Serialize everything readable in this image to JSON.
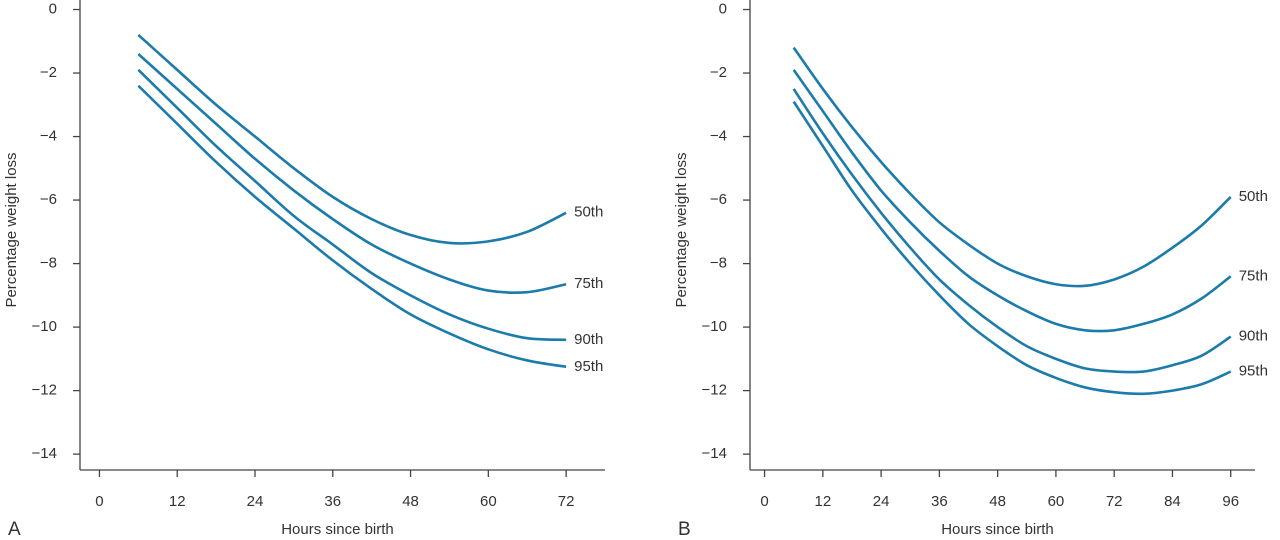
{
  "chart_data": [
    {
      "type": "line",
      "panel_label": "A",
      "x_label": "Hours since birth",
      "y_label": "Percentage weight loss",
      "xlim": [
        -3,
        78
      ],
      "ylim": [
        -14.5,
        0.3
      ],
      "xticks": [
        0,
        12,
        24,
        36,
        48,
        60,
        72
      ],
      "yticks": [
        0,
        {
          "value": -2,
          "label": "−2"
        },
        {
          "value": -4,
          "label": "−4"
        },
        {
          "value": -6,
          "label": "−6"
        },
        {
          "value": -8,
          "label": "−8"
        },
        {
          "value": -10,
          "label": "−10"
        },
        {
          "value": -12,
          "label": "−12"
        },
        {
          "value": -14,
          "label": "−14"
        }
      ],
      "x": [
        6,
        12,
        18,
        24,
        30,
        36,
        42,
        48,
        54,
        60,
        66,
        72
      ],
      "series": [
        {
          "name": "50th",
          "color": "#1b7bab",
          "values": [
            -0.8,
            -1.9,
            -3.0,
            -4.0,
            -5.0,
            -5.9,
            -6.6,
            -7.1,
            -7.35,
            -7.3,
            -7.0,
            -6.4
          ]
        },
        {
          "name": "75th",
          "color": "#1b7bab",
          "values": [
            -1.4,
            -2.5,
            -3.6,
            -4.7,
            -5.7,
            -6.6,
            -7.4,
            -8.0,
            -8.5,
            -8.85,
            -8.9,
            -8.65
          ]
        },
        {
          "name": "90th",
          "color": "#1b7bab",
          "values": [
            -1.9,
            -3.1,
            -4.3,
            -5.4,
            -6.5,
            -7.4,
            -8.3,
            -9.0,
            -9.6,
            -10.05,
            -10.35,
            -10.4
          ]
        },
        {
          "name": "95th",
          "color": "#1b7bab",
          "values": [
            -2.4,
            -3.6,
            -4.8,
            -5.9,
            -6.9,
            -7.9,
            -8.8,
            -9.6,
            -10.2,
            -10.7,
            -11.05,
            -11.25
          ]
        }
      ]
    },
    {
      "type": "line",
      "panel_label": "B",
      "x_label": "Hours since birth",
      "y_label": "Percentage weight loss",
      "xlim": [
        -3,
        101
      ],
      "ylim": [
        -14.5,
        0.3
      ],
      "xticks": [
        0,
        12,
        24,
        36,
        48,
        60,
        72,
        84,
        96
      ],
      "yticks": [
        0,
        {
          "value": -2,
          "label": "−2"
        },
        {
          "value": -4,
          "label": "−4"
        },
        {
          "value": -6,
          "label": "−6"
        },
        {
          "value": -8,
          "label": "−8"
        },
        {
          "value": -10,
          "label": "−10"
        },
        {
          "value": -12,
          "label": "−12"
        },
        {
          "value": -14,
          "label": "−14"
        }
      ],
      "x": [
        6,
        12,
        18,
        24,
        30,
        36,
        42,
        48,
        54,
        60,
        66,
        72,
        78,
        84,
        90,
        96
      ],
      "series": [
        {
          "name": "50th",
          "color": "#1b7bab",
          "values": [
            -1.2,
            -2.5,
            -3.7,
            -4.8,
            -5.8,
            -6.7,
            -7.4,
            -8.0,
            -8.4,
            -8.65,
            -8.7,
            -8.5,
            -8.1,
            -7.5,
            -6.8,
            -5.9
          ]
        },
        {
          "name": "75th",
          "color": "#1b7bab",
          "values": [
            -1.9,
            -3.2,
            -4.5,
            -5.7,
            -6.7,
            -7.6,
            -8.4,
            -9.0,
            -9.5,
            -9.9,
            -10.1,
            -10.1,
            -9.9,
            -9.6,
            -9.1,
            -8.4
          ]
        },
        {
          "name": "90th",
          "color": "#1b7bab",
          "values": [
            -2.5,
            -3.9,
            -5.2,
            -6.4,
            -7.5,
            -8.5,
            -9.3,
            -10.0,
            -10.6,
            -11.0,
            -11.3,
            -11.4,
            -11.4,
            -11.2,
            -10.9,
            -10.3
          ]
        },
        {
          "name": "95th",
          "color": "#1b7bab",
          "values": [
            -2.9,
            -4.3,
            -5.7,
            -6.9,
            -8.0,
            -9.0,
            -9.9,
            -10.6,
            -11.2,
            -11.6,
            -11.9,
            -12.05,
            -12.1,
            -12.0,
            -11.8,
            -11.4
          ]
        }
      ]
    }
  ]
}
